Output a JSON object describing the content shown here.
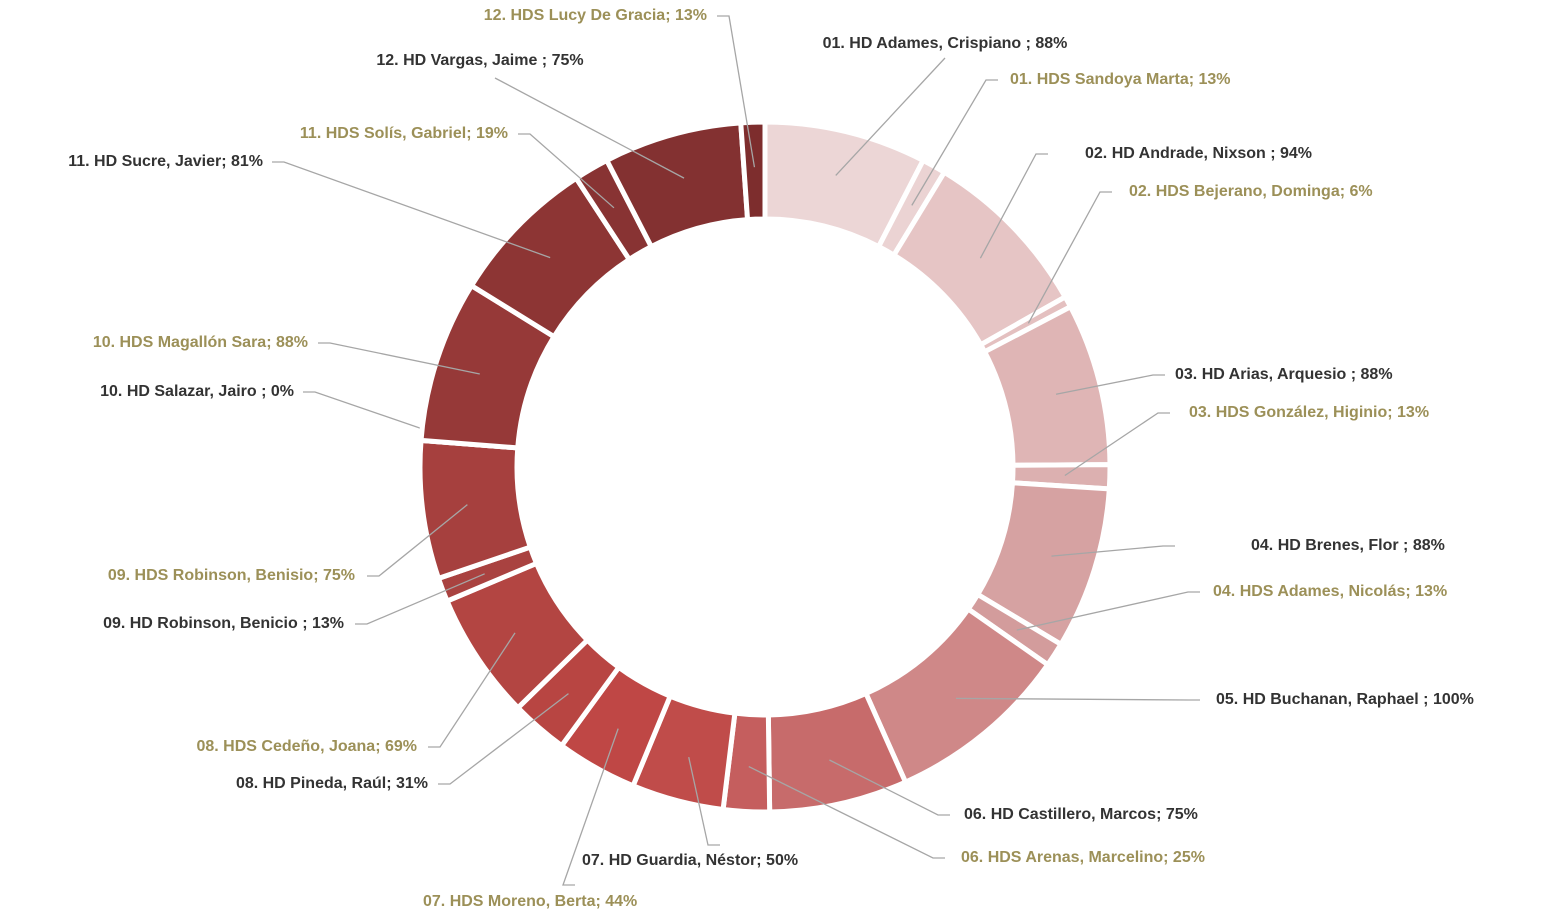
{
  "chart_data": {
    "type": "donut",
    "categories": [
      "01. HD Adames, Crispiano ; 88%",
      "01. HDS Sandoya Marta; 13%",
      "02. HD Andrade, Nixson ; 94%",
      "02. HDS Bejerano, Dominga; 6%",
      "03. HD Arias, Arquesio ; 88%",
      "03. HDS González, Higinio; 13%",
      "04. HD Brenes, Flor  ; 88%",
      "04. HDS Adames, Nicolás; 13%",
      "05. HD Buchanan, Raphael ; 100%",
      "06. HD Castillero, Marcos; 75%",
      "06. HDS Arenas, Marcelino; 25%",
      "07. HD Guardia, Néstor; 50%",
      "07. HDS Moreno, Berta; 44%",
      "08. HD Pineda, Raúl; 31%",
      "08. HDS Cedeño, Joana; 69%",
      "09. HD Robinson, Benicio ; 13%",
      "09. HDS Robinson, Benisio; 75%",
      "10. HD Salazar, Jairo ; 0%",
      "10. HDS Magallón Sara; 88%",
      "11. HD Sucre, Javier; 81%",
      "11. HDS Solís, Gabriel; 19%",
      "12. HD Vargas, Jaime ; 75%",
      "12. HDS Lucy De Gracia; 13%"
    ],
    "values": [
      88,
      13,
      94,
      6,
      88,
      13,
      88,
      13,
      100,
      75,
      25,
      50,
      44,
      31,
      69,
      13,
      75,
      0,
      88,
      81,
      19,
      75,
      13
    ],
    "colors": [
      "#ecd6d6",
      "#ebd3d3",
      "#e6c5c5",
      "#e4c0c0",
      "#dfb5b5",
      "#dcb0b0",
      "#d6a2a2",
      "#d39c9c",
      "#cf8888",
      "#c76b6b",
      "#c55e5e",
      "#c04c4a",
      "#bf4745",
      "#b84542",
      "#b34542",
      "#a94240",
      "#a6403e",
      "#9d3b3a",
      "#963938",
      "#8d3534",
      "#883333",
      "#833131",
      "#7d2d2d"
    ],
    "label_colors": [
      "#333333",
      "#9c9058",
      "#333333",
      "#9c9058",
      "#333333",
      "#9c9058",
      "#333333",
      "#9c9058",
      "#333333",
      "#333333",
      "#9c9058",
      "#333333",
      "#9c9058",
      "#333333",
      "#9c9058",
      "#333333",
      "#9c9058",
      "#333333",
      "#9c9058",
      "#333333",
      "#9c9058",
      "#333333",
      "#9c9058"
    ]
  }
}
